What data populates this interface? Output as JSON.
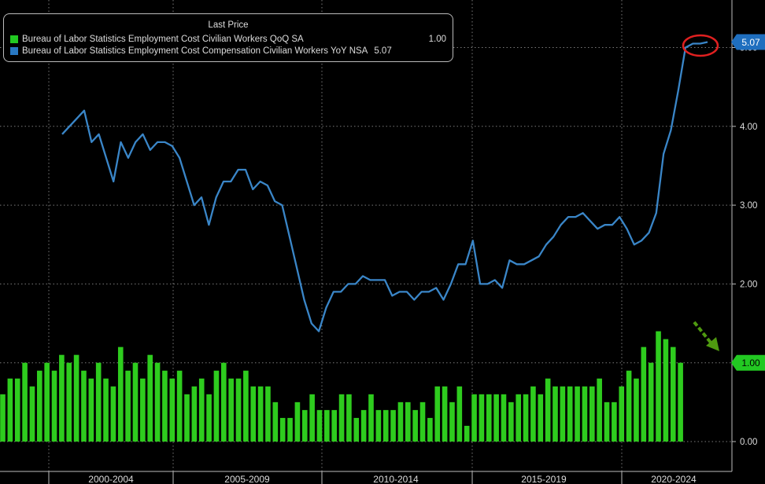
{
  "colors": {
    "line": "#3a86c8",
    "bars": "#2ecc1e",
    "grid": "#7a7a7a",
    "text": "#dddddd",
    "circle": "#e02020",
    "arrow": "#4f9a10"
  },
  "legend": {
    "header": "Last Price",
    "series": [
      {
        "name": "Bureau of Labor Statistics Employment Cost Civilian Workers QoQ SA",
        "last": "1.00",
        "color": "#22c922"
      },
      {
        "name": "Bureau of Labor Statistics Employment Cost Compensation Civilian Workers YoY NSA",
        "last": "5.07",
        "color": "#2878c2"
      }
    ]
  },
  "chart_data": {
    "type": "bar+line",
    "x_ticks": [
      "2000-2004",
      "2005-2009",
      "2010-2014",
      "2015-2019",
      "2020-2024"
    ],
    "y_ticks": [
      "0.00",
      "1.00",
      "2.00",
      "3.00",
      "4.00",
      "5.00"
    ],
    "ylim": [
      0,
      5.6
    ],
    "grid": true,
    "legend_position": "top-left",
    "last_value_labels": [
      "5.07",
      "1.00"
    ],
    "bars": {
      "name": "Bureau of Labor Statistics Employment Cost Civilian Workers QoQ SA",
      "values": [
        0.6,
        0.8,
        0.8,
        1.0,
        0.7,
        0.9,
        1.0,
        0.9,
        1.1,
        1.0,
        1.1,
        0.9,
        0.8,
        1.0,
        0.8,
        0.7,
        1.2,
        0.9,
        1.0,
        0.8,
        1.1,
        1.0,
        0.9,
        0.8,
        0.9,
        0.6,
        0.7,
        0.8,
        0.6,
        0.9,
        1.0,
        0.8,
        0.8,
        0.9,
        0.7,
        0.7,
        0.7,
        0.5,
        0.3,
        0.3,
        0.5,
        0.4,
        0.6,
        0.4,
        0.4,
        0.4,
        0.6,
        0.6,
        0.3,
        0.4,
        0.6,
        0.4,
        0.4,
        0.4,
        0.5,
        0.5,
        0.4,
        0.5,
        0.3,
        0.7,
        0.7,
        0.5,
        0.7,
        0.2,
        0.6,
        0.6,
        0.6,
        0.6,
        0.6,
        0.5,
        0.6,
        0.6,
        0.7,
        0.6,
        0.8,
        0.7,
        0.7,
        0.7,
        0.7,
        0.7,
        0.7,
        0.8,
        0.5,
        0.5,
        0.7,
        0.9,
        0.8,
        1.2,
        1.0,
        1.4,
        1.3,
        1.2,
        1.0
      ]
    },
    "line": {
      "name": "Bureau of Labor Statistics Employment Cost Compensation Civilian Workers YoY NSA",
      "values": [
        3.9,
        4.0,
        4.1,
        4.2,
        3.8,
        3.9,
        3.6,
        3.3,
        3.8,
        3.6,
        3.8,
        3.9,
        3.7,
        3.8,
        3.8,
        3.75,
        3.6,
        3.3,
        3.0,
        3.1,
        2.75,
        3.1,
        3.3,
        3.3,
        3.45,
        3.45,
        3.2,
        3.3,
        3.25,
        3.05,
        3.0,
        2.6,
        2.2,
        1.8,
        1.5,
        1.4,
        1.7,
        1.9,
        1.9,
        2.0,
        2.0,
        2.1,
        2.05,
        2.05,
        2.05,
        1.85,
        1.9,
        1.9,
        1.8,
        1.9,
        1.9,
        1.95,
        1.8,
        2.0,
        2.25,
        2.25,
        2.55,
        2.0,
        2.0,
        2.05,
        1.95,
        2.3,
        2.25,
        2.25,
        2.3,
        2.35,
        2.5,
        2.6,
        2.75,
        2.85,
        2.85,
        2.9,
        2.8,
        2.7,
        2.75,
        2.75,
        2.85,
        2.7,
        2.5,
        2.55,
        2.65,
        2.9,
        3.65,
        3.95,
        4.45,
        5.0,
        5.05,
        5.05,
        5.07
      ]
    }
  }
}
